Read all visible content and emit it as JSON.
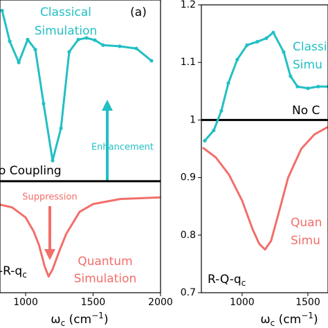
{
  "chart_data": [
    {
      "type": "line",
      "xlim": [
        810,
        2000
      ],
      "ylim": [
        0.8,
        1.325
      ],
      "xticks": [
        1000,
        1500,
        2000
      ],
      "xlabel": [
        "ω",
        "c",
        " (cm",
        "−1",
        ")"
      ],
      "panel_label": [
        "-R-q",
        "c"
      ],
      "hline": 1.0,
      "annotations": [
        "Classical",
        "Simulation",
        "(a)",
        "o Coupling",
        "Enhancement",
        "Suppression",
        "Quantum",
        "Simulation"
      ],
      "series": [
        {
          "color": "#22bfc4",
          "markers": true,
          "x": [
            826,
            882,
            949,
            1015,
            1072,
            1133,
            1200,
            1262,
            1323,
            1390,
            1451,
            1513,
            1574,
            1697,
            1821,
            1933
          ],
          "values": [
            1.306,
            1.251,
            1.213,
            1.254,
            1.236,
            1.139,
            1.037,
            1.095,
            1.232,
            1.254,
            1.257,
            1.253,
            1.244,
            1.242,
            1.238,
            1.216
          ]
        },
        {
          "color": "#f26e6a",
          "markers": false,
          "x": [
            810,
            900,
            1000,
            1060,
            1100,
            1140,
            1170,
            1200,
            1250,
            1300,
            1400,
            1500,
            1700,
            2000
          ],
          "values": [
            0.958,
            0.953,
            0.935,
            0.91,
            0.885,
            0.848,
            0.829,
            0.842,
            0.875,
            0.905,
            0.945,
            0.959,
            0.968,
            0.971
          ]
        }
      ]
    },
    {
      "type": "line",
      "xlim": [
        690,
        1653
      ],
      "ylim": [
        0.7,
        1.2
      ],
      "xticks": [
        1000,
        1500
      ],
      "yticks": [
        0.7,
        0.8,
        0.9,
        1.0,
        1.1,
        1.2
      ],
      "xlabel": [
        "ω",
        "c",
        " (cm",
        "−1",
        ")"
      ],
      "panel_label": [
        "R-Q-q",
        "c"
      ],
      "hline": 1.0,
      "annotations": [
        "Classi",
        "Simu",
        "No C",
        "Quan",
        "Simu"
      ],
      "series": [
        {
          "color": "#22bfc4",
          "markers": true,
          "x": [
            716,
            784,
            842,
            895,
            963,
            1037,
            1116,
            1184,
            1237,
            1316,
            1368,
            1421,
            1500,
            1579,
            1653
          ],
          "values": [
            0.964,
            0.982,
            1.016,
            1.064,
            1.105,
            1.13,
            1.136,
            1.142,
            1.152,
            1.118,
            1.076,
            1.058,
            1.055,
            1.058,
            1.058
          ]
        },
        {
          "color": "#f26e6a",
          "markers": false,
          "x": [
            700,
            800,
            900,
            1000,
            1080,
            1130,
            1174,
            1220,
            1280,
            1350,
            1450,
            1550,
            1653
          ],
          "values": [
            0.952,
            0.935,
            0.905,
            0.86,
            0.81,
            0.785,
            0.775,
            0.79,
            0.84,
            0.9,
            0.95,
            0.975,
            0.988
          ]
        }
      ]
    }
  ]
}
